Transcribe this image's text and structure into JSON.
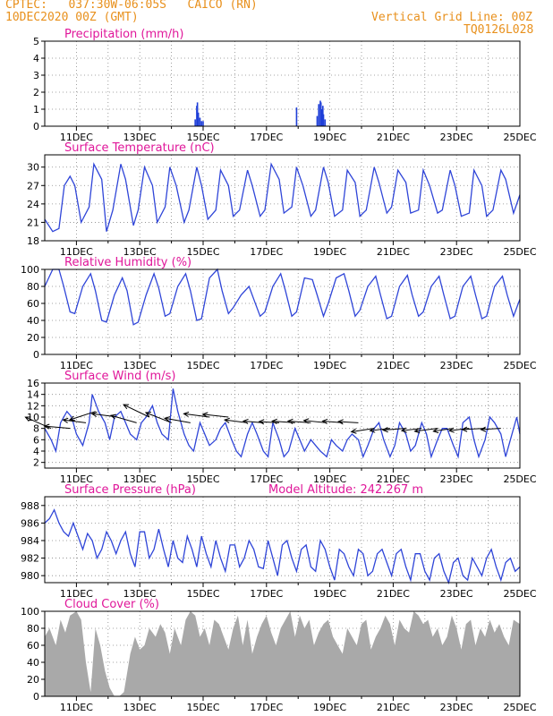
{
  "header": {
    "line1": "CPTEC:   037:30W-06:05S   CAICO (RN)",
    "line2": "10DEC2020 00Z (GMT)",
    "grid_note": "Vertical Grid Line: 00Z",
    "code": "TQ0126L028"
  },
  "colors": {
    "header": "#e8901c",
    "title": "#e0179a",
    "line": "#2f45d8",
    "precip": "#1f3fd8",
    "cloud": "#a9a9a9",
    "wind_arrow": "#000000"
  },
  "x_axis_labels": [
    "11DEC",
    "13DEC",
    "15DEC",
    "17DEC",
    "19DEC",
    "21DEC",
    "23DEC",
    "25DEC"
  ],
  "chart_data": [
    {
      "id": "precip",
      "type": "bar",
      "title": "Precipitation (mm/h)",
      "ylim": [
        0,
        5
      ],
      "yticks": [
        "0",
        "1",
        "2",
        "3",
        "4",
        "5"
      ],
      "x_unit": "days since 10DEC2020 00Z",
      "x": [
        4.75,
        4.8,
        4.82,
        4.85,
        4.9,
        4.95,
        5.0,
        7.95,
        8.6,
        8.65,
        8.7,
        8.72,
        8.75,
        8.78,
        8.8,
        8.85
      ],
      "values": [
        0.4,
        1.2,
        1.4,
        0.8,
        0.5,
        0.3,
        0.3,
        1.1,
        0.6,
        1.3,
        1.5,
        1.4,
        1.0,
        1.2,
        0.7,
        0.4
      ]
    },
    {
      "id": "temp",
      "type": "line",
      "title": "Surface Temperature (nC)",
      "ylim": [
        18,
        32
      ],
      "yticks": [
        "18",
        "21",
        "24",
        "27",
        "30"
      ],
      "x": [
        0,
        0.25,
        0.45,
        0.62,
        0.8,
        0.95,
        1.15,
        1.4,
        1.55,
        1.8,
        1.95,
        2.15,
        2.4,
        2.55,
        2.8,
        2.95,
        3.15,
        3.4,
        3.55,
        3.8,
        3.95,
        4.15,
        4.4,
        4.55,
        4.8,
        4.95,
        5.15,
        5.4,
        5.55,
        5.8,
        5.95,
        6.15,
        6.4,
        6.55,
        6.8,
        6.95,
        7.15,
        7.4,
        7.55,
        7.8,
        7.95,
        8.15,
        8.4,
        8.55,
        8.8,
        8.95,
        9.15,
        9.4,
        9.55,
        9.8,
        9.95,
        10.15,
        10.4,
        10.55,
        10.8,
        10.95,
        11.15,
        11.4,
        11.55,
        11.8,
        11.95,
        12.15,
        12.4,
        12.55,
        12.8,
        12.95,
        13.15,
        13.4,
        13.55,
        13.8,
        13.95,
        14.15,
        14.4,
        14.55,
        14.8,
        15.0
      ],
      "values": [
        21.5,
        19.5,
        20,
        27,
        28.5,
        27,
        21,
        23.5,
        30.5,
        28,
        19.5,
        23,
        30.5,
        28,
        20.5,
        23,
        30,
        27,
        21,
        23.5,
        30,
        27,
        21,
        23,
        30,
        27,
        21.5,
        23,
        29.5,
        27,
        22,
        23,
        29.5,
        27,
        22,
        23,
        30.5,
        28,
        22.5,
        23.5,
        30,
        27,
        22,
        23,
        30,
        27.5,
        22,
        23,
        29.5,
        27.5,
        22,
        23,
        30,
        27.5,
        22.5,
        23.5,
        29.5,
        27.5,
        22.5,
        23,
        29.5,
        27,
        22.5,
        23,
        29.5,
        27,
        22,
        22.5,
        29.5,
        27,
        22,
        23,
        29.5,
        28,
        22.5,
        25.5
      ]
    },
    {
      "id": "rh",
      "type": "line",
      "title": "Relative Humidity (%)",
      "ylim": [
        0,
        100
      ],
      "yticks": [
        "0",
        "20",
        "40",
        "60",
        "80",
        "100"
      ],
      "x": [
        0,
        0.25,
        0.45,
        0.6,
        0.8,
        0.95,
        1.2,
        1.45,
        1.6,
        1.8,
        1.95,
        2.2,
        2.45,
        2.6,
        2.8,
        2.95,
        3.2,
        3.45,
        3.6,
        3.8,
        3.95,
        4.2,
        4.45,
        4.6,
        4.8,
        4.95,
        5.2,
        5.45,
        5.6,
        5.8,
        5.95,
        6.2,
        6.45,
        6.6,
        6.8,
        6.95,
        7.2,
        7.45,
        7.6,
        7.8,
        7.95,
        8.2,
        8.45,
        8.6,
        8.8,
        8.95,
        9.2,
        9.45,
        9.6,
        9.8,
        9.95,
        10.2,
        10.45,
        10.6,
        10.8,
        10.95,
        11.2,
        11.45,
        11.6,
        11.8,
        11.95,
        12.2,
        12.45,
        12.6,
        12.8,
        12.95,
        13.2,
        13.45,
        13.6,
        13.8,
        13.95,
        14.2,
        14.45,
        14.6,
        14.8,
        15.0
      ],
      "values": [
        80,
        100,
        100,
        80,
        50,
        48,
        80,
        95,
        75,
        40,
        38,
        70,
        90,
        75,
        35,
        38,
        70,
        95,
        78,
        45,
        48,
        80,
        95,
        75,
        40,
        42,
        90,
        100,
        75,
        48,
        55,
        70,
        80,
        65,
        45,
        50,
        80,
        95,
        75,
        45,
        50,
        90,
        88,
        70,
        45,
        60,
        90,
        95,
        75,
        45,
        52,
        80,
        92,
        70,
        42,
        45,
        80,
        93,
        70,
        45,
        50,
        80,
        92,
        70,
        42,
        45,
        80,
        92,
        70,
        42,
        45,
        80,
        92,
        70,
        45,
        65
      ]
    },
    {
      "id": "wind",
      "type": "line",
      "title": "Surface Wind (m/s)",
      "ylim": [
        1,
        16
      ],
      "yticks": [
        "2",
        "4",
        "6",
        "8",
        "10",
        "12",
        "14",
        "16"
      ],
      "x": [
        0,
        0.2,
        0.35,
        0.5,
        0.7,
        0.85,
        1.0,
        1.2,
        1.4,
        1.5,
        1.7,
        1.9,
        2.05,
        2.2,
        2.4,
        2.55,
        2.7,
        2.9,
        3.05,
        3.2,
        3.4,
        3.55,
        3.7,
        3.9,
        4.05,
        4.2,
        4.4,
        4.55,
        4.7,
        4.9,
        5.05,
        5.2,
        5.4,
        5.55,
        5.7,
        5.9,
        6.05,
        6.2,
        6.4,
        6.55,
        6.7,
        6.9,
        7.05,
        7.2,
        7.4,
        7.55,
        7.7,
        7.9,
        8.05,
        8.2,
        8.4,
        8.55,
        8.7,
        8.9,
        9.05,
        9.2,
        9.4,
        9.55,
        9.7,
        9.9,
        10.05,
        10.2,
        10.4,
        10.55,
        10.7,
        10.9,
        11.05,
        11.2,
        11.4,
        11.55,
        11.7,
        11.9,
        12.05,
        12.2,
        12.4,
        12.55,
        12.7,
        12.9,
        13.05,
        13.2,
        13.4,
        13.55,
        13.7,
        13.9,
        14.05,
        14.2,
        14.4,
        14.55,
        14.7,
        14.9,
        15.0
      ],
      "values": [
        8,
        6,
        4,
        9,
        11,
        10,
        7,
        5,
        9,
        14,
        11,
        9,
        6,
        10,
        11,
        9,
        7,
        6,
        9,
        10,
        12,
        9,
        7,
        6,
        15,
        11,
        7,
        5,
        4,
        9,
        7,
        5,
        6,
        8,
        9,
        6,
        4,
        3,
        7,
        9,
        7,
        4,
        3,
        9,
        6,
        3,
        4,
        8,
        6,
        4,
        6,
        5,
        4,
        3,
        6,
        5,
        4,
        6,
        7,
        6,
        3,
        5,
        8,
        9,
        6,
        3,
        5,
        9,
        7,
        4,
        5,
        9,
        7,
        3,
        6,
        8,
        8,
        5,
        3,
        9,
        10,
        6,
        3,
        6,
        10,
        9,
        7,
        3,
        6,
        10,
        7
      ]
    },
    {
      "id": "pressure",
      "type": "line",
      "title": "Surface Pressure (hPa)",
      "subtitle": "Model Altitude: 242.267 m",
      "ylim": [
        979.2,
        989
      ],
      "yticks": [
        "980",
        "982",
        "984",
        "986",
        "988"
      ],
      "x": [
        0,
        0.15,
        0.3,
        0.45,
        0.6,
        0.75,
        0.9,
        1.05,
        1.2,
        1.35,
        1.5,
        1.65,
        1.8,
        1.95,
        2.1,
        2.25,
        2.4,
        2.55,
        2.7,
        2.85,
        3.0,
        3.15,
        3.3,
        3.45,
        3.6,
        3.75,
        3.9,
        4.05,
        4.2,
        4.35,
        4.5,
        4.65,
        4.8,
        4.95,
        5.1,
        5.25,
        5.4,
        5.55,
        5.7,
        5.85,
        6.0,
        6.15,
        6.3,
        6.45,
        6.6,
        6.75,
        6.9,
        7.05,
        7.2,
        7.35,
        7.5,
        7.65,
        7.8,
        7.95,
        8.1,
        8.25,
        8.4,
        8.55,
        8.7,
        8.85,
        9.0,
        9.15,
        9.3,
        9.45,
        9.6,
        9.75,
        9.9,
        10.05,
        10.2,
        10.35,
        10.5,
        10.65,
        10.8,
        10.95,
        11.1,
        11.25,
        11.4,
        11.55,
        11.7,
        11.85,
        12.0,
        12.15,
        12.3,
        12.45,
        12.6,
        12.75,
        12.9,
        13.05,
        13.2,
        13.35,
        13.5,
        13.65,
        13.8,
        13.95,
        14.1,
        14.25,
        14.4,
        14.55,
        14.7,
        14.85,
        15.0
      ],
      "values": [
        986,
        986.5,
        987.5,
        986,
        985,
        984.5,
        986,
        984.5,
        983,
        984.8,
        984,
        982,
        983,
        985,
        984,
        982.5,
        984,
        985,
        982.5,
        981,
        985,
        985,
        982,
        983,
        985.3,
        983,
        981,
        984,
        982,
        981.5,
        984.5,
        983,
        981,
        984.5,
        982.5,
        981,
        984,
        982,
        980.5,
        983.5,
        983.5,
        981,
        982,
        984,
        983,
        981,
        980.8,
        984,
        982,
        980,
        983.5,
        984,
        982,
        980.5,
        983,
        983.5,
        981,
        980.5,
        984,
        983,
        981,
        979.5,
        983,
        982.5,
        981,
        980,
        983,
        982.5,
        980,
        980.5,
        982.5,
        983,
        981.5,
        980,
        982.5,
        983,
        981,
        979.5,
        982.5,
        982.5,
        980.5,
        979.5,
        982,
        982.5,
        980.5,
        979.2,
        981.5,
        982,
        980,
        979.5,
        982,
        981,
        980,
        982,
        983,
        981,
        979.5,
        981.5,
        982,
        980.5,
        981
      ]
    },
    {
      "id": "cloud",
      "type": "area",
      "title": "Cloud Cover (%)",
      "ylim": [
        0,
        100
      ],
      "yticks": [
        "0",
        "20",
        "40",
        "60",
        "80",
        "100"
      ],
      "x": [
        0,
        0.15,
        0.35,
        0.5,
        0.65,
        0.8,
        1.0,
        1.15,
        1.3,
        1.45,
        1.6,
        1.75,
        1.9,
        2.05,
        2.2,
        2.35,
        2.5,
        2.7,
        2.85,
        3.0,
        3.15,
        3.3,
        3.5,
        3.65,
        3.8,
        3.95,
        4.1,
        4.3,
        4.45,
        4.6,
        4.75,
        4.9,
        5.05,
        5.2,
        5.35,
        5.5,
        5.65,
        5.8,
        5.95,
        6.1,
        6.25,
        6.4,
        6.55,
        6.7,
        6.85,
        7.0,
        7.15,
        7.3,
        7.45,
        7.6,
        7.75,
        7.9,
        8.05,
        8.2,
        8.35,
        8.5,
        8.65,
        8.8,
        8.95,
        9.1,
        9.25,
        9.4,
        9.55,
        9.7,
        9.85,
        10.0,
        10.15,
        10.3,
        10.45,
        10.6,
        10.75,
        10.9,
        11.05,
        11.2,
        11.35,
        11.5,
        11.65,
        11.8,
        11.95,
        12.1,
        12.25,
        12.4,
        12.55,
        12.7,
        12.85,
        13.0,
        13.15,
        13.3,
        13.45,
        13.6,
        13.75,
        13.9,
        14.05,
        14.2,
        14.35,
        14.5,
        14.65,
        14.8,
        15.0
      ],
      "values": [
        70,
        80,
        60,
        90,
        75,
        95,
        100,
        90,
        40,
        5,
        80,
        60,
        30,
        10,
        0,
        0,
        5,
        50,
        70,
        55,
        60,
        80,
        70,
        85,
        75,
        50,
        80,
        60,
        90,
        100,
        95,
        70,
        80,
        60,
        90,
        85,
        70,
        55,
        80,
        95,
        60,
        90,
        50,
        70,
        85,
        95,
        75,
        60,
        80,
        90,
        100,
        70,
        95,
        80,
        90,
        60,
        75,
        85,
        90,
        70,
        60,
        50,
        80,
        70,
        60,
        85,
        90,
        55,
        70,
        80,
        95,
        85,
        60,
        90,
        80,
        75,
        100,
        95,
        85,
        90,
        70,
        80,
        60,
        70,
        95,
        80,
        55,
        85,
        90,
        60,
        80,
        70,
        90,
        75,
        85,
        70,
        60,
        90,
        85
      ]
    }
  ]
}
